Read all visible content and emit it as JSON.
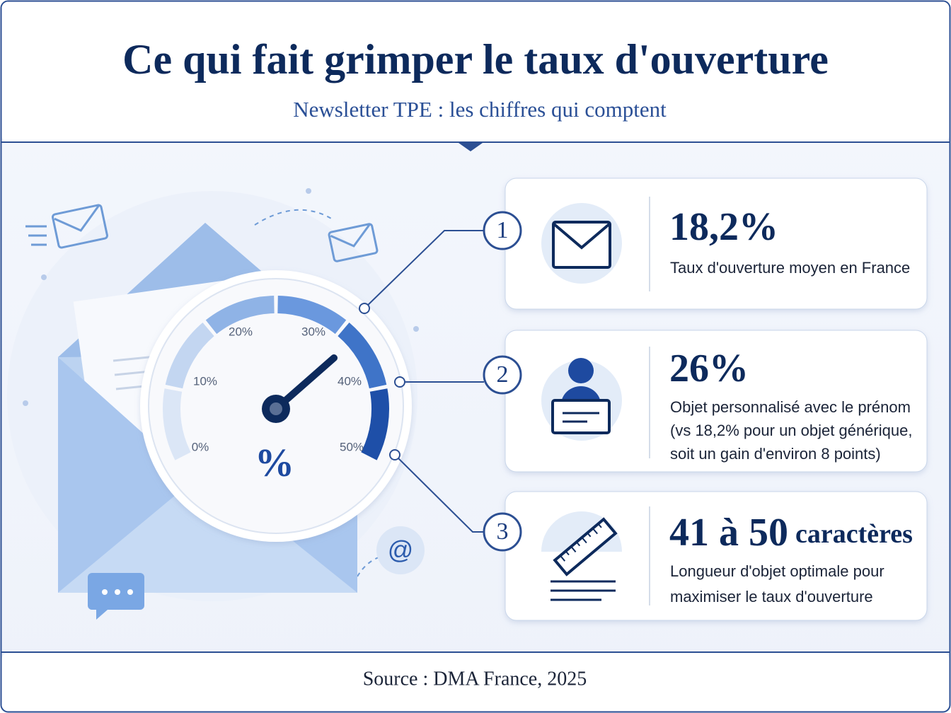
{
  "header": {
    "title": "Ce qui fait grimper le taux d'ouverture",
    "subtitle": "Newsletter TPE : les chiffres qui comptent"
  },
  "gauge": {
    "tick_labels": [
      "0%",
      "10%",
      "20%",
      "30%",
      "40%",
      "50%"
    ],
    "symbol": "%"
  },
  "cards": [
    {
      "badge": "1",
      "stat": "18,2%",
      "description": [
        "Taux d'ouverture moyen en France"
      ]
    },
    {
      "badge": "2",
      "stat": "26%",
      "description": [
        "Objet personnalisé avec le prénom",
        "(vs 18,2% pour un objet générique,",
        "soit un gain d'environ 8 points)"
      ]
    },
    {
      "badge": "3",
      "stat": "41 à 50",
      "stat_unit": "caractères",
      "description": [
        "Longueur d'objet optimale pour",
        "maximiser le taux d'ouverture"
      ]
    }
  ],
  "footer": {
    "source": "Source : DMA France, 2025"
  }
}
